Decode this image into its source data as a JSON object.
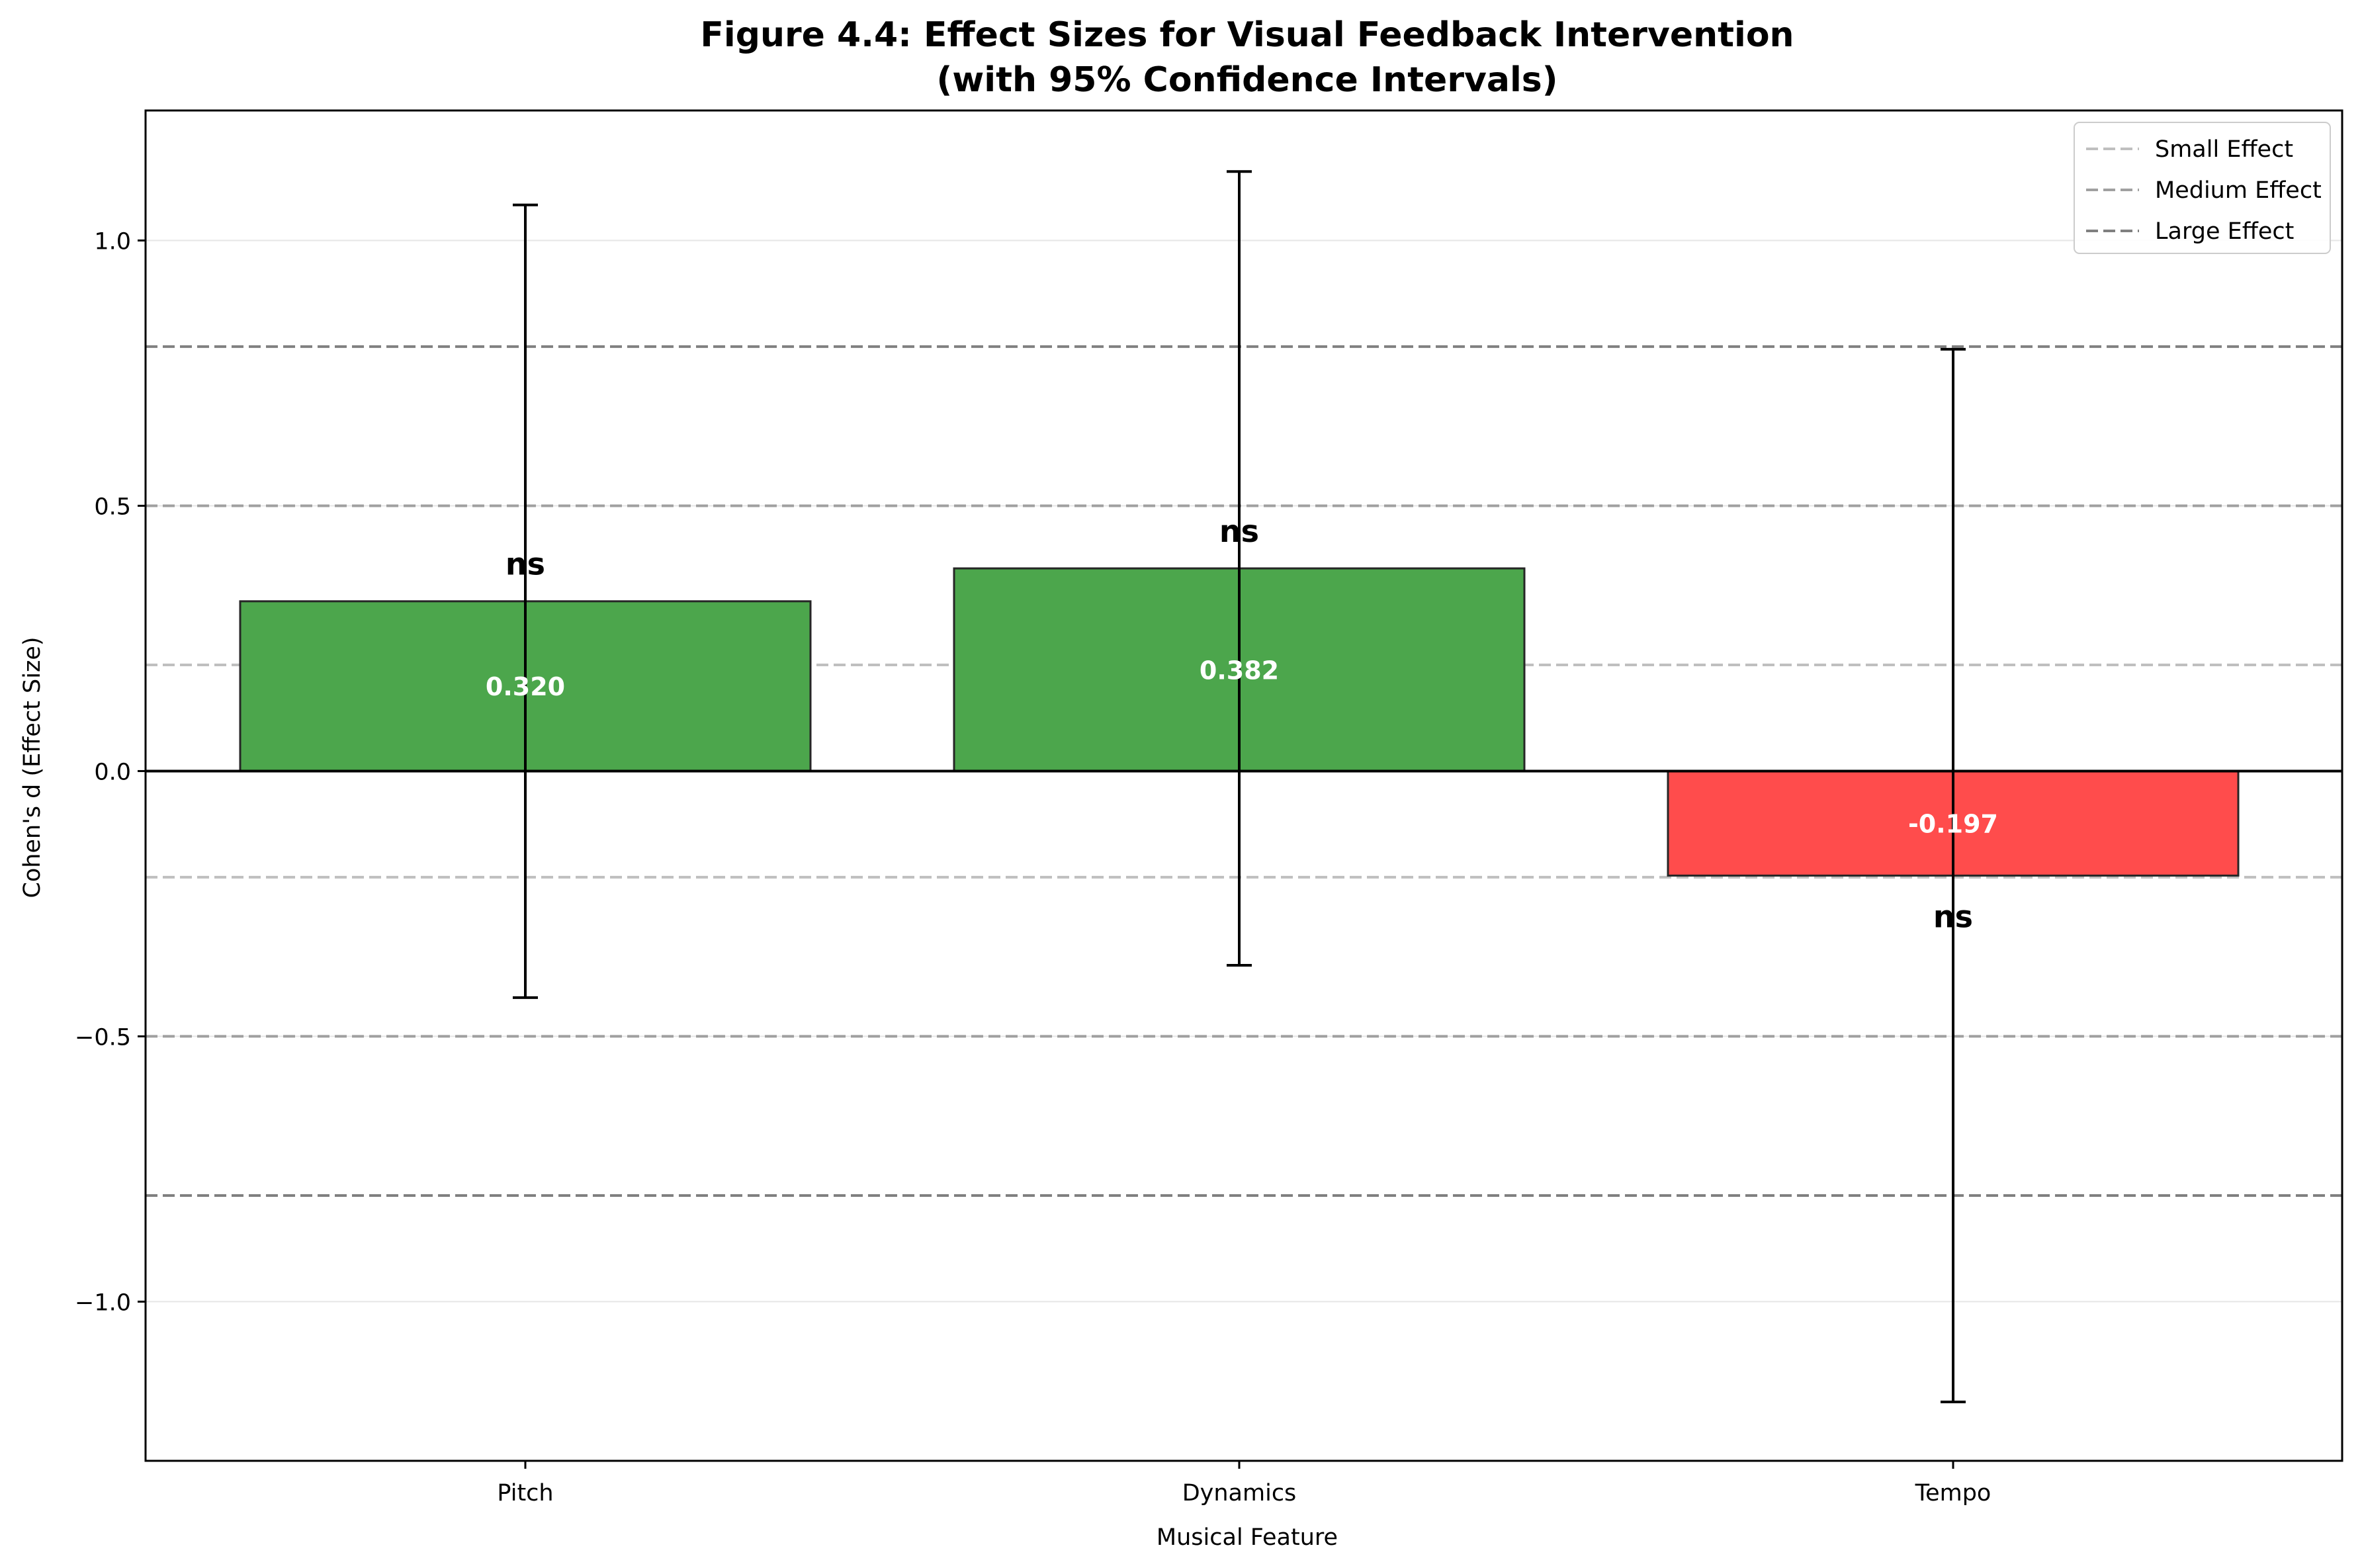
{
  "chart_data": {
    "type": "bar",
    "title_line1": "Figure 4.4: Effect Sizes for Visual Feedback Intervention",
    "title_line2": "(with 95% Confidence Intervals)",
    "xlabel": "Musical Feature",
    "ylabel": "Cohen's d (Effect Size)",
    "categories": [
      "Pitch",
      "Dynamics",
      "Tempo"
    ],
    "values": [
      0.32,
      0.382,
      -0.197
    ],
    "value_labels": [
      "0.320",
      "0.382",
      "-0.197"
    ],
    "ci_lower": [
      -0.427,
      -0.366,
      -1.189
    ],
    "ci_upper": [
      1.067,
      1.13,
      0.795
    ],
    "significance": [
      "ns",
      "ns",
      "ns"
    ],
    "bar_colors": [
      "#4ca64c",
      "#4ca64c",
      "#ff4c4c"
    ],
    "ylim": [
      -1.3,
      1.245
    ],
    "yticks": [
      -1.0,
      -0.5,
      0.0,
      0.5,
      1.0
    ],
    "ytick_labels": [
      "−1.0",
      "−0.5",
      "0.0",
      "0.5",
      "1.0"
    ],
    "grid": "y",
    "reference_lines": [
      {
        "name": "Small Effect",
        "value": 0.2,
        "color": "#bfbfbf"
      },
      {
        "name": "Medium Effect",
        "value": 0.5,
        "color": "#a0a0a0"
      },
      {
        "name": "Large Effect",
        "value": 0.8,
        "color": "#808080"
      }
    ],
    "legend_placement": "top-right"
  }
}
